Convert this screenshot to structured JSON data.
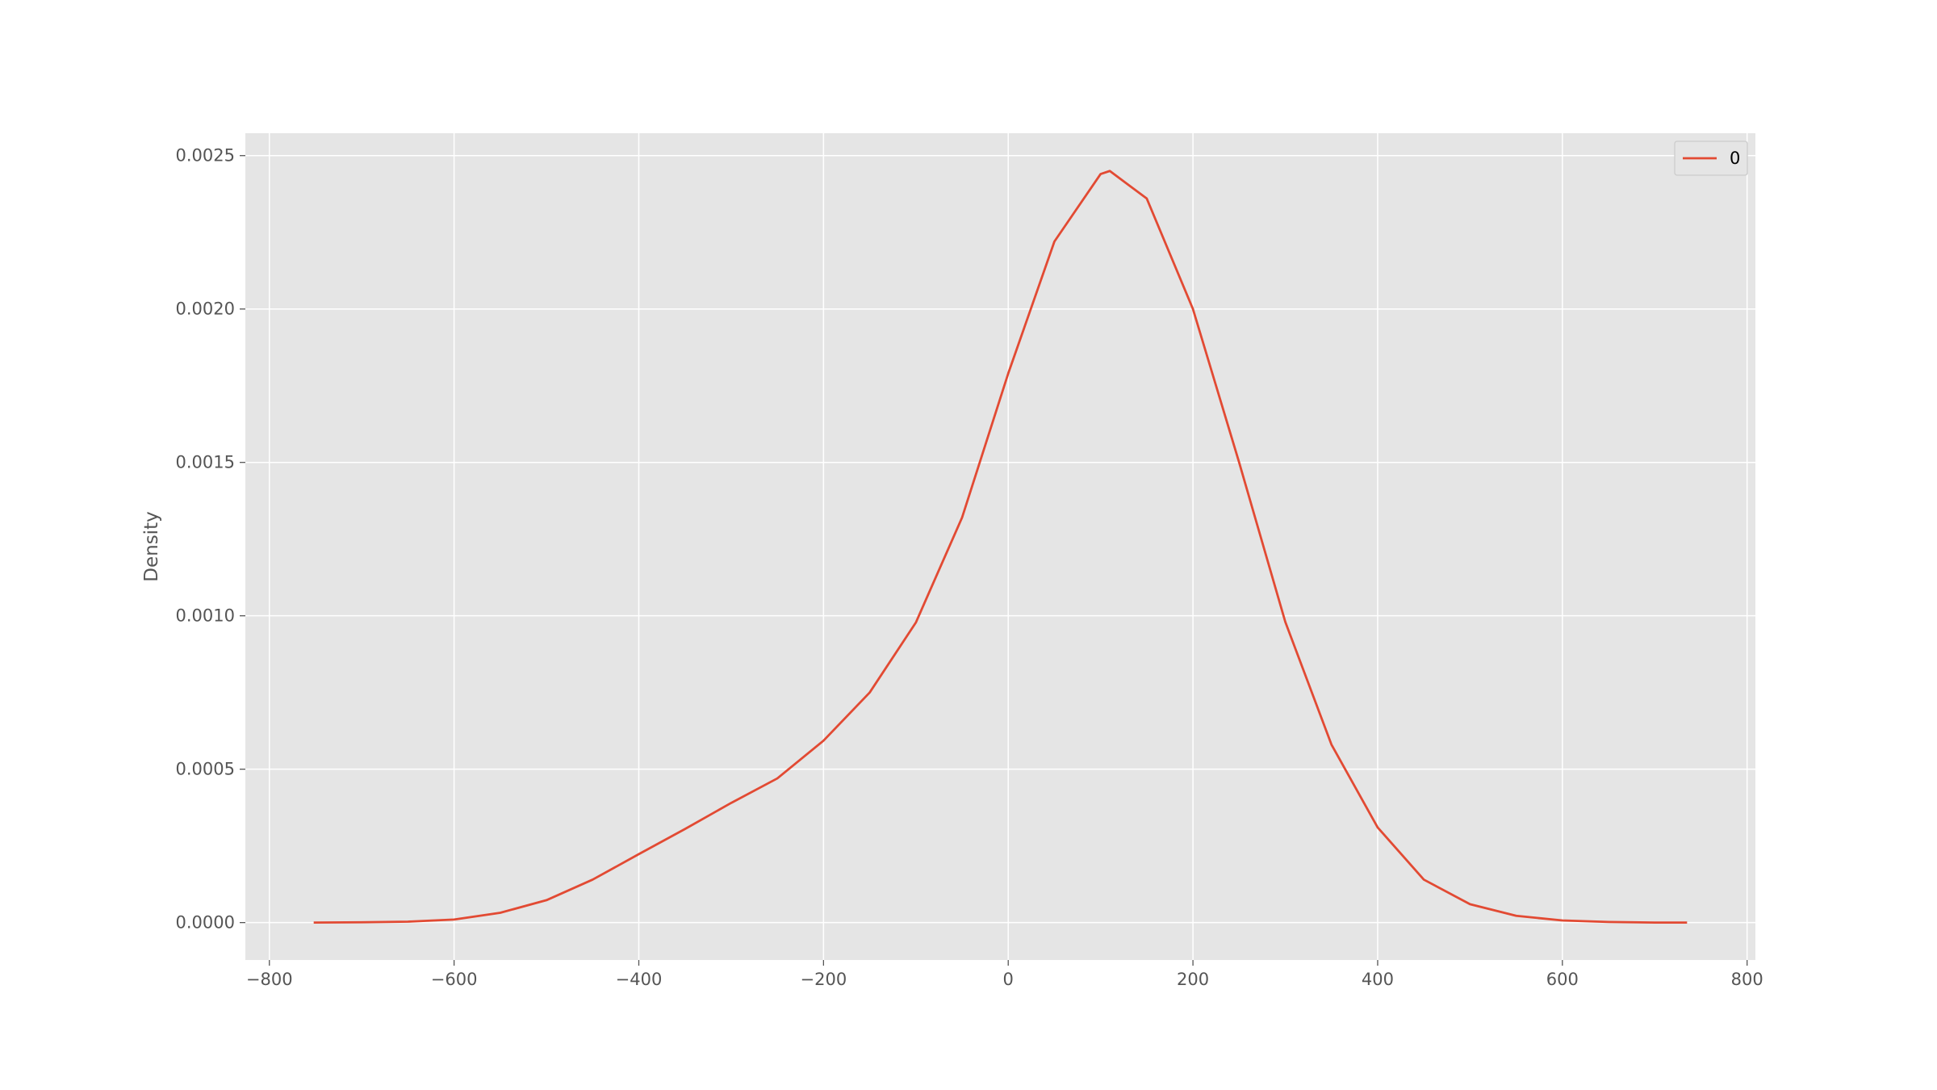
{
  "chart_data": {
    "type": "line",
    "ylabel": "Density",
    "x": [
      -752,
      -700,
      -650,
      -600,
      -550,
      -500,
      -450,
      -400,
      -350,
      -300,
      -250,
      -200,
      -150,
      -100,
      -50,
      0,
      50,
      100,
      110,
      150,
      200,
      250,
      300,
      350,
      400,
      450,
      500,
      550,
      600,
      650,
      700,
      735
    ],
    "series": [
      {
        "name": "0",
        "color": "#e24a33",
        "values": [
          0,
          1e-06,
          3e-06,
          1e-05,
          3.2e-05,
          7.3e-05,
          0.00014,
          0.000223,
          0.000305,
          0.00039,
          0.00047,
          0.000593,
          0.00075,
          0.000978,
          0.00132,
          0.00179,
          0.00222,
          0.00244,
          0.00245,
          0.00236,
          0.002,
          0.0015,
          0.00098,
          0.00058,
          0.00031,
          0.00014,
          6e-05,
          2.2e-05,
          7e-06,
          2e-06,
          0,
          0
        ]
      }
    ],
    "xlim": [
      -826,
      809
    ],
    "ylim": [
      -0.000122,
      0.002573
    ],
    "xticks": [
      {
        "value": -800,
        "label": "−800"
      },
      {
        "value": -600,
        "label": "−600"
      },
      {
        "value": -400,
        "label": "−400"
      },
      {
        "value": -200,
        "label": "−200"
      },
      0,
      200,
      400,
      600,
      800
    ],
    "yticks": [
      {
        "value": 0,
        "label": "0.0000"
      },
      {
        "value": 0.0005,
        "label": "0.0005"
      },
      {
        "value": 0.001,
        "label": "0.0010"
      },
      {
        "value": 0.0015,
        "label": "0.0015"
      },
      {
        "value": 0.002,
        "label": "0.0020"
      },
      {
        "value": 0.0025,
        "label": "0.0025"
      }
    ],
    "grid": true,
    "legend": "upper right",
    "background": "#e5e5e5"
  }
}
